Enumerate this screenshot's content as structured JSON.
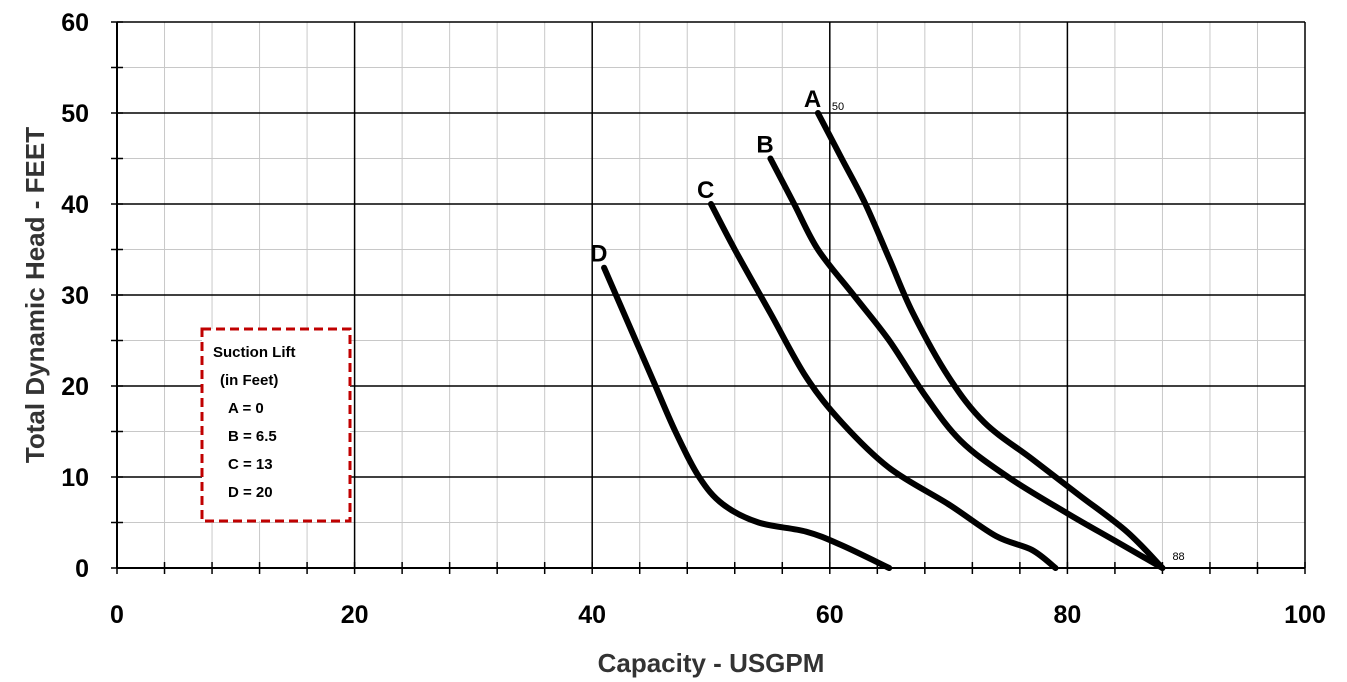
{
  "chart_data": {
    "type": "line",
    "xlabel": "Capacity - USGPM",
    "ylabel": "Total Dynamic Head - FEET",
    "xlim": [
      0,
      100
    ],
    "ylim": [
      0,
      60
    ],
    "xticks": [
      "0",
      "20",
      "40",
      "60",
      "80",
      "100"
    ],
    "yticks": [
      "0",
      "10",
      "20",
      "30",
      "40",
      "50",
      "60"
    ],
    "grid": true,
    "series": [
      {
        "name": "A",
        "points": [
          [
            59,
            50
          ],
          [
            61,
            45
          ],
          [
            63,
            40
          ],
          [
            65,
            34
          ],
          [
            67,
            28
          ],
          [
            70,
            21
          ],
          [
            73,
            16
          ],
          [
            77,
            12
          ],
          [
            81,
            8
          ],
          [
            85,
            4
          ],
          [
            88,
            0
          ]
        ]
      },
      {
        "name": "B",
        "points": [
          [
            55,
            45
          ],
          [
            57,
            40
          ],
          [
            59,
            35
          ],
          [
            62,
            30
          ],
          [
            65,
            25
          ],
          [
            68,
            19
          ],
          [
            71,
            14
          ],
          [
            75,
            10
          ],
          [
            80,
            6
          ],
          [
            84,
            3
          ],
          [
            88,
            0
          ]
        ]
      },
      {
        "name": "C",
        "points": [
          [
            50,
            40
          ],
          [
            52,
            35
          ],
          [
            55,
            28
          ],
          [
            58,
            21
          ],
          [
            61,
            16
          ],
          [
            65,
            11
          ],
          [
            70,
            7
          ],
          [
            74,
            3.5
          ],
          [
            77,
            2
          ],
          [
            79,
            0
          ]
        ]
      },
      {
        "name": "D",
        "points": [
          [
            41,
            33
          ],
          [
            43,
            27
          ],
          [
            45,
            21
          ],
          [
            47,
            15
          ],
          [
            49,
            10
          ],
          [
            51,
            7
          ],
          [
            54,
            5
          ],
          [
            58,
            4
          ],
          [
            61,
            2.5
          ],
          [
            65,
            0
          ]
        ]
      }
    ],
    "annotations": {
      "a_end": "50",
      "right_end": "88"
    },
    "legend": {
      "title_line1": "Suction Lift",
      "title_line2": "(in Feet)",
      "items": [
        "A = 0",
        "B = 6.5",
        "C = 13",
        "D = 20"
      ],
      "border_color": "#c00000",
      "placement": "left-middle"
    }
  }
}
